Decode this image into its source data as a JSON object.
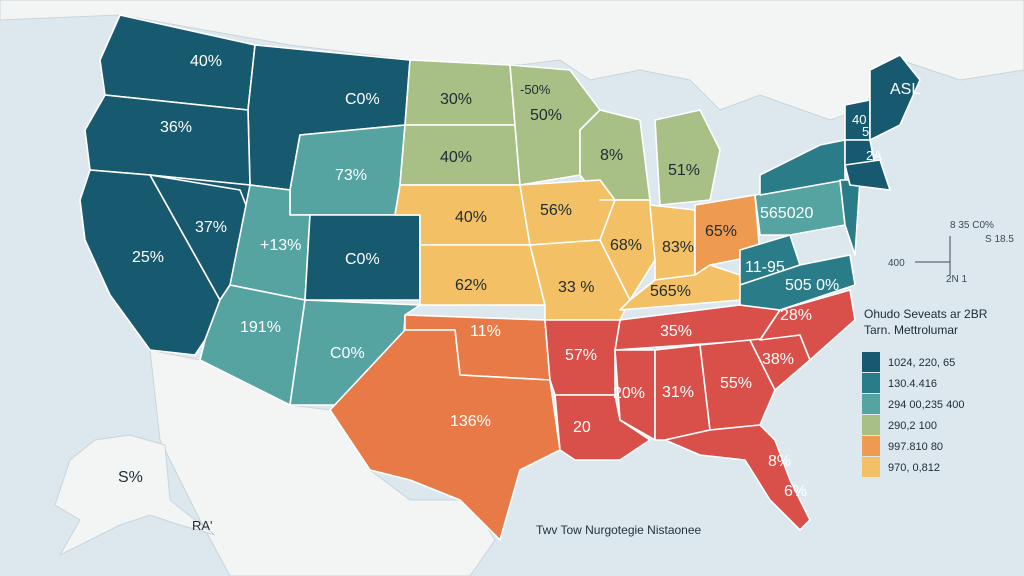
{
  "colors": {
    "water": "#dce8ee",
    "land": "#f3f5f5",
    "dark_teal": "#17596e",
    "teal": "#2a7c88",
    "light_teal": "#55a4a2",
    "sage": "#a8bf86",
    "yellow": "#f4c065",
    "orange": "#ee9b51",
    "red_orange": "#e77a47",
    "red": "#d9504a"
  },
  "regions": {
    "wa": "40%",
    "id": "C0%",
    "or": "36%",
    "mt": "C0%",
    "ca": "25%",
    "nv": "37%",
    "wy": "73%",
    "ut": "+13%",
    "co": "C0%",
    "az": "191%",
    "nm": "C0%",
    "nd": "30%",
    "sd": "40%",
    "ne": "40%",
    "ks": "62%",
    "mn": "50%",
    "mn_top": "-50%",
    "ia": "56%",
    "mo": "33 %",
    "wi": "8%",
    "mi": "51%",
    "il": "68%",
    "in": "83%",
    "oh": "65%",
    "ok": "11%",
    "tx": "136%",
    "ar": "57%",
    "la": "20",
    "ms": "20%",
    "al": "31%",
    "ga": "55%",
    "sc": "38%",
    "tn": "35%",
    "ky": "565%",
    "nc": "28%",
    "va": "505 0%",
    "wv": "11-95",
    "pa": "565020",
    "me": "ASL",
    "vt": "40",
    "nh": "5",
    "ma": "2A",
    "fl": "8%",
    "fl_south": "6%",
    "ak": "S%"
  },
  "side_notes": [
    "8 35 C0%",
    "S 18.5",
    "400",
    "2N 1"
  ],
  "alaska_tag": "RA'",
  "legend": {
    "title": "Ohudo Seveats ar 2BR",
    "subtitle": "Tarn. Mettrolumar",
    "items": [
      {
        "label": "1024, 220, 65",
        "color": "#17596e"
      },
      {
        "label": "130.4.416",
        "color": "#2a7c88"
      },
      {
        "label": "294 00,235 400",
        "color": "#55a4a2"
      },
      {
        "label": "290,2 100",
        "color": "#a8bf86"
      },
      {
        "label": "997.810 80",
        "color": "#ee9b51"
      },
      {
        "label": "970, 0,812",
        "color": "#f4c065"
      }
    ]
  },
  "caption": "Twv Tow Nurgotegie Nistaonee"
}
